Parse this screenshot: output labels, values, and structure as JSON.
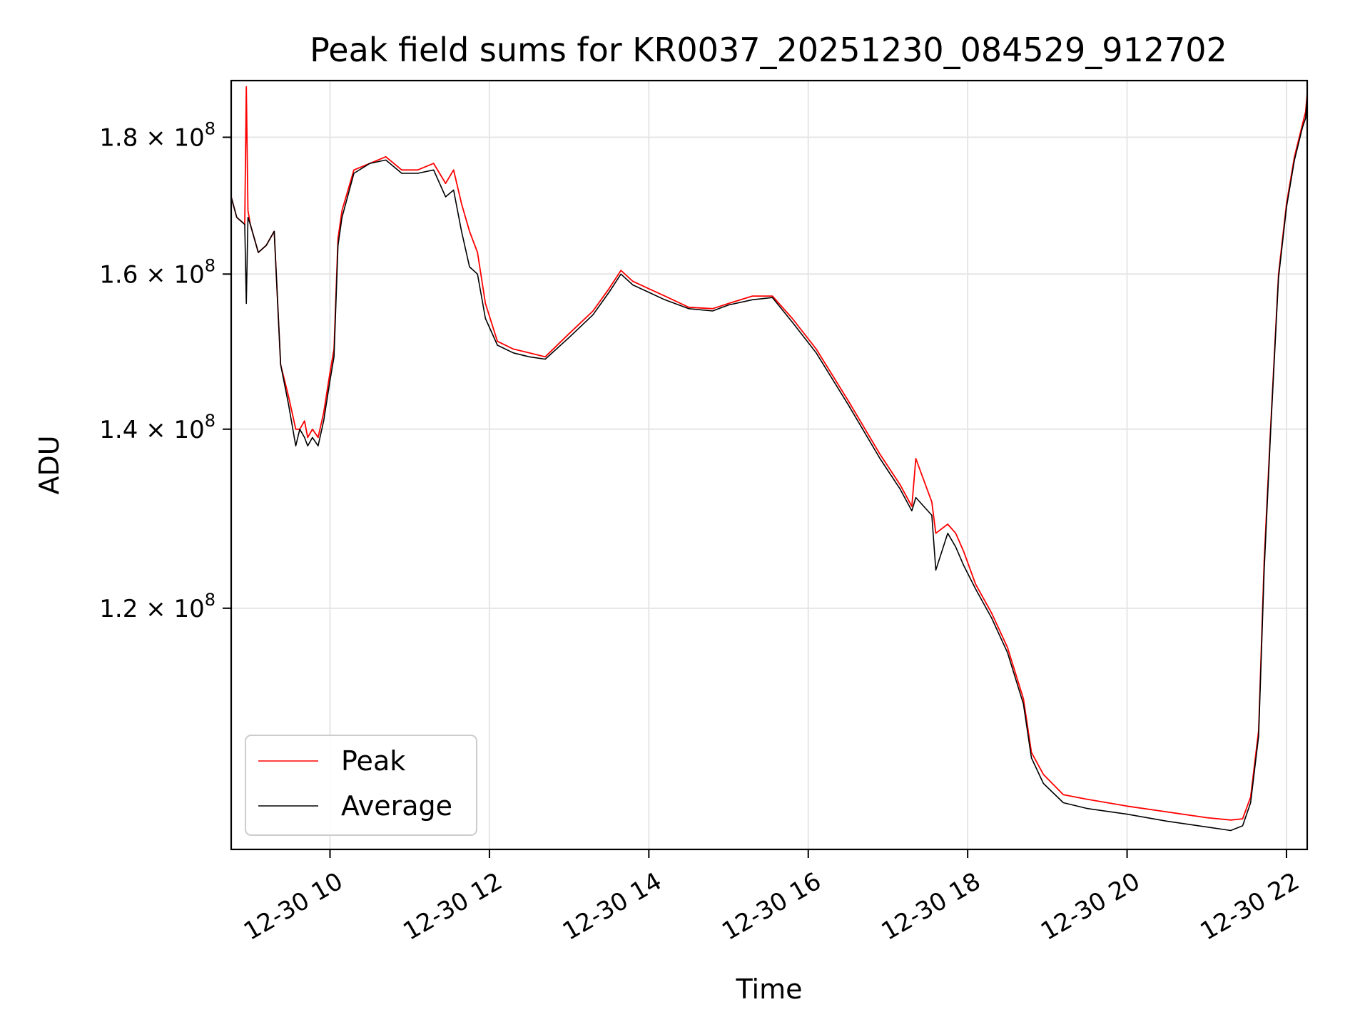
{
  "chart_data": {
    "type": "line",
    "title": "Peak field sums for KR0037_20251230_084529_912702",
    "xlabel": "Time",
    "ylabel": "ADU",
    "y_scale": "log",
    "xlim_hours": [
      8.76,
      22.26
    ],
    "ylim": [
      97500000,
      189000000
    ],
    "grid": true,
    "legend_position": "lower-left",
    "x_ticks": [
      {
        "hour": 10,
        "label": "12-30 10"
      },
      {
        "hour": 12,
        "label": "12-30 12"
      },
      {
        "hour": 14,
        "label": "12-30 14"
      },
      {
        "hour": 16,
        "label": "12-30 16"
      },
      {
        "hour": 18,
        "label": "12-30 18"
      },
      {
        "hour": 20,
        "label": "12-30 20"
      },
      {
        "hour": 22,
        "label": "12-30 22"
      }
    ],
    "y_ticks": [
      {
        "value": 120000000,
        "mantissa": "1.2",
        "exponent": "8"
      },
      {
        "value": 140000000,
        "mantissa": "1.4",
        "exponent": "8"
      },
      {
        "value": 160000000,
        "mantissa": "1.6",
        "exponent": "8"
      },
      {
        "value": 180000000,
        "mantissa": "1.8",
        "exponent": "8"
      }
    ],
    "x_hours": [
      8.76,
      8.83,
      8.93,
      8.95,
      8.97,
      9.0,
      9.1,
      9.2,
      9.3,
      9.38,
      9.48,
      9.57,
      9.62,
      9.68,
      9.72,
      9.78,
      9.85,
      9.92,
      10.0,
      10.05,
      10.1,
      10.15,
      10.3,
      10.5,
      10.7,
      10.9,
      11.1,
      11.3,
      11.45,
      11.55,
      11.65,
      11.75,
      11.85,
      11.95,
      12.1,
      12.3,
      12.5,
      12.7,
      13.0,
      13.3,
      13.5,
      13.65,
      13.8,
      14.0,
      14.2,
      14.5,
      14.8,
      15.0,
      15.3,
      15.55,
      15.8,
      16.1,
      16.5,
      16.9,
      17.15,
      17.3,
      17.35,
      17.55,
      17.6,
      17.75,
      17.85,
      17.95,
      18.1,
      18.3,
      18.5,
      18.7,
      18.8,
      18.95,
      19.2,
      19.5,
      20.0,
      20.5,
      21.0,
      21.3,
      21.45,
      21.55,
      21.65,
      21.72,
      21.8,
      21.9,
      22.0,
      22.1,
      22.2,
      22.24,
      22.26
    ],
    "series": [
      {
        "name": "Peak",
        "color": "#ff0000",
        "values": [
          171,
          168,
          167,
          188,
          169,
          167,
          163,
          164,
          166,
          148,
          144,
          140,
          140,
          141,
          139,
          140,
          139,
          142,
          147,
          150,
          165,
          169,
          175,
          176,
          177,
          175,
          175,
          176,
          173,
          175,
          170,
          166,
          163,
          156,
          151,
          150,
          149.5,
          149,
          152,
          155,
          158,
          160.5,
          159,
          158,
          157,
          155.5,
          155.3,
          156,
          157,
          157,
          154,
          150,
          143.5,
          137,
          133.5,
          131,
          136.5,
          131.5,
          128,
          129,
          128,
          126,
          122.5,
          119.5,
          116,
          111,
          106,
          104,
          102.2,
          101.8,
          101.2,
          100.7,
          100.2,
          100.0,
          100.1,
          102,
          108,
          125,
          140,
          160,
          170,
          177,
          182,
          184,
          187
        ]
      },
      {
        "name": "Average",
        "color": "#000000",
        "values": [
          171,
          168,
          167,
          156,
          168,
          167,
          163,
          164,
          166,
          148,
          143,
          138,
          140,
          139,
          138,
          139,
          138,
          141,
          146,
          149,
          164,
          168,
          174.5,
          176,
          176.5,
          174.5,
          174.5,
          175,
          171,
          172,
          166,
          161,
          160,
          154,
          150.5,
          149.5,
          149,
          148.7,
          151.5,
          154.5,
          157.5,
          160,
          158.5,
          157.5,
          156.5,
          155.3,
          155,
          155.8,
          156.5,
          156.8,
          153.5,
          149.5,
          143,
          136.5,
          133,
          130.5,
          132,
          130,
          124,
          128,
          126.5,
          124.5,
          122,
          119,
          115.5,
          110.5,
          105.5,
          103.2,
          101.5,
          101,
          100.5,
          99.9,
          99.4,
          99.1,
          99.5,
          101.5,
          107.5,
          124,
          139.5,
          159.5,
          169.5,
          176.5,
          181.5,
          183,
          186.5
        ]
      }
    ]
  }
}
